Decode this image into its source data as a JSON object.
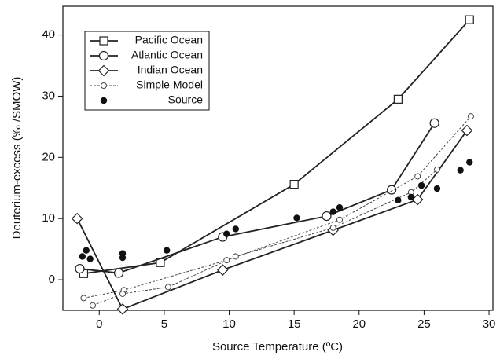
{
  "chart_data": {
    "type": "line",
    "xlabel": "Source Temperature (ºC)",
    "ylabel": "Deuterium-excess  (‰ /SMOW)",
    "xlim": [
      -2.8,
      30.3
    ],
    "xticks": [
      0,
      5,
      10,
      15,
      20,
      25,
      30
    ],
    "ylim": [
      -5,
      44.7
    ],
    "yticks": [
      0,
      10,
      20,
      30,
      40
    ],
    "legend": "upper left",
    "series": [
      {
        "name": "Pacific Ocean",
        "color": "#222",
        "marker": "square",
        "style": "solid",
        "x": [
          -1.2,
          4.7,
          15,
          23,
          28.5
        ],
        "values": [
          1,
          2.8,
          15.6,
          29.5,
          42.5
        ]
      },
      {
        "name": "Atlantic Ocean",
        "color": "#222",
        "marker": "circle",
        "style": "solid",
        "x": [
          -1.5,
          1.5,
          9.5,
          17.5,
          22.5,
          25.8
        ],
        "values": [
          1.8,
          1.1,
          7,
          10.4,
          14.7,
          25.6
        ]
      },
      {
        "name": "Indian Ocean",
        "color": "#222",
        "marker": "diamond",
        "style": "solid",
        "x": [
          -1.7,
          1.8,
          9.5,
          18,
          24.5,
          28.3
        ],
        "values": [
          10,
          -4.8,
          1.6,
          8.1,
          13.1,
          24.4
        ]
      },
      {
        "name": "Simple Model",
        "color": "#444",
        "marker": "small-circle",
        "style": "dotted",
        "x": [
          -1.2,
          1.9,
          9.8,
          18.5,
          24.5,
          28.6,
          null,
          -0.5,
          1.8,
          5.3,
          10.5,
          18,
          24,
          26
        ],
        "values": [
          -3,
          -1.7,
          3.2,
          9.8,
          16.9,
          26.7,
          null,
          -4.2,
          -2.3,
          -1.2,
          3.8,
          8.5,
          14.3,
          18
        ]
      },
      {
        "name": "Source",
        "color": "#111",
        "marker": "dot",
        "style": "none",
        "x": [
          -1.3,
          -1,
          -0.7,
          1.8,
          1.8,
          5.2,
          9.8,
          10.5,
          15.2,
          18,
          18.5,
          23,
          24,
          24.8,
          26,
          27.8,
          28.5
        ],
        "values": [
          3.8,
          4.8,
          3.4,
          4.3,
          3.6,
          4.8,
          7.5,
          8.3,
          10.1,
          11.1,
          11.8,
          13,
          13.5,
          15.4,
          14.9,
          17.9,
          19.2
        ]
      }
    ]
  }
}
